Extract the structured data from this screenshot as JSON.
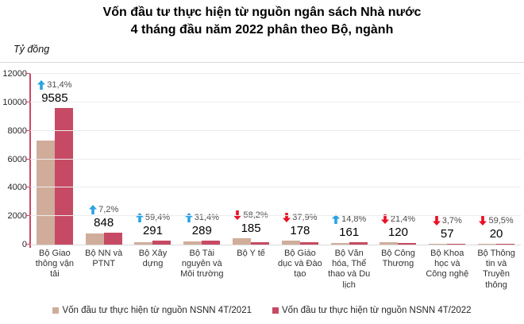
{
  "title": {
    "line1": "Vốn đầu tư thực hiện từ nguồn ngân sách Nhà nước",
    "line2": "4 tháng đầu năm 2022 phân theo Bộ, ngành"
  },
  "unit_label": "Tỷ đồng",
  "colors": {
    "bar_2021": "#d0ad9b",
    "bar_2022": "#c74a64",
    "up_arrow": "#29a3e3",
    "down_arrow": "#e81123",
    "y_axis": "#cc4762",
    "gridline": "#ececec",
    "baseline": "#d9d9d9"
  },
  "chart_data": {
    "type": "bar",
    "title": "Vốn đầu tư thực hiện từ nguồn ngân sách Nhà nước 4 tháng đầu năm 2022 phân theo Bộ, ngành",
    "ylabel": "Tỷ đồng",
    "xlabel": "",
    "ylim": [
      0,
      12000
    ],
    "yticks": [
      0,
      2000,
      4000,
      6000,
      8000,
      10000,
      12000
    ],
    "grid": true,
    "legend_position": "bottom",
    "categories": [
      "Bộ Giao thông vận tải",
      "Bộ NN và PTNT",
      "Bộ Xây dựng",
      "Bộ Tài nguyên và Môi trường",
      "Bộ Y tế",
      "Bộ Giáo dục và Đào tạo",
      "Bộ Văn hóa, Thể thao và Du lịch",
      "Bộ Công Thương",
      "Bộ Khoa học và Công nghệ",
      "Bộ Thông tin và Truyền thông"
    ],
    "series": [
      {
        "name": "Vốn đầu tư thực hiện từ nguồn NSNN 4T/2021",
        "values": [
          7294,
          791,
          183,
          220,
          443,
          287,
          140,
          153,
          59,
          49
        ]
      },
      {
        "name": "Vốn đầu tư thực hiện từ nguồn NSNN 4T/2022",
        "values": [
          9585,
          848,
          291,
          289,
          185,
          178,
          161,
          120,
          57,
          20
        ]
      }
    ],
    "annotations": [
      {
        "value_label": "9585",
        "pct_label": "31,4%",
        "direction": "up"
      },
      {
        "value_label": "848",
        "pct_label": "7,2%",
        "direction": "up"
      },
      {
        "value_label": "291",
        "pct_label": "59,4%",
        "direction": "up"
      },
      {
        "value_label": "289",
        "pct_label": "31,4%",
        "direction": "up"
      },
      {
        "value_label": "185",
        "pct_label": "58,2%",
        "direction": "down"
      },
      {
        "value_label": "178",
        "pct_label": "37,9%",
        "direction": "down"
      },
      {
        "value_label": "161",
        "pct_label": "14,8%",
        "direction": "up"
      },
      {
        "value_label": "120",
        "pct_label": "21,4%",
        "direction": "down"
      },
      {
        "value_label": "57",
        "pct_label": "3,7%",
        "direction": "down"
      },
      {
        "value_label": "20",
        "pct_label": "59,5%",
        "direction": "down"
      }
    ]
  },
  "legend": {
    "items": [
      {
        "label": "Vốn đầu tư thực hiện từ nguồn NSNN 4T/2021",
        "color": "#d0ad9b"
      },
      {
        "label": "Vốn đầu tư thực hiện từ nguồn NSNN 4T/2022",
        "color": "#c74a64"
      }
    ]
  }
}
